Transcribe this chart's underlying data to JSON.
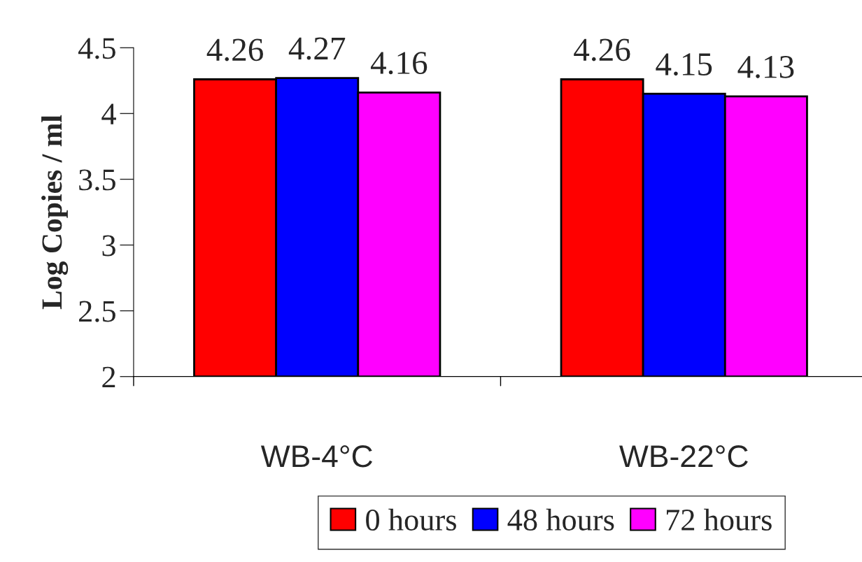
{
  "chart_data": {
    "type": "bar",
    "ylabel": "Log Copies / ml",
    "categories": [
      "WB-4°C",
      "WB-22°C"
    ],
    "series": [
      {
        "name": "0 hours",
        "color": "#ff0000",
        "values": [
          4.26,
          4.26
        ]
      },
      {
        "name": "48 hours",
        "color": "#0000ff",
        "values": [
          4.27,
          4.15
        ]
      },
      {
        "name": "72 hours",
        "color": "#ff00ff",
        "values": [
          4.16,
          4.13
        ]
      }
    ],
    "ylim": [
      2,
      4.5
    ],
    "yticks": [
      2,
      2.5,
      3,
      3.5,
      4,
      4.5
    ],
    "data_labels": true,
    "grid": false,
    "legend": "bottom"
  }
}
